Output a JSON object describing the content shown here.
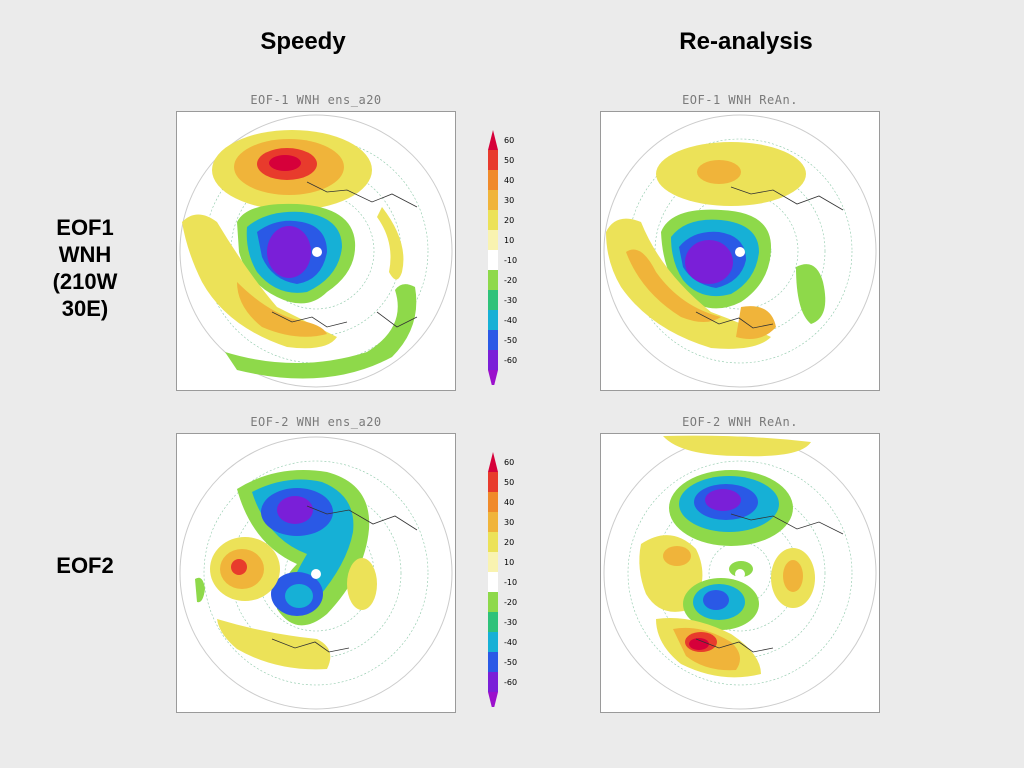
{
  "columns": {
    "left": "Speedy",
    "right": "Re-analysis"
  },
  "rows": {
    "eof1": [
      "EOF1",
      "WNH",
      "(210W",
      "30E)"
    ],
    "eof2": [
      "EOF2"
    ]
  },
  "panels": {
    "eof1_speedy": "EOF-1 WNH  ens_a20",
    "eof1_rean": "EOF-1 WNH  ReAn.",
    "eof2_speedy": "EOF-2 WNH  ens_a20",
    "eof2_rean": "EOF-2 WNH  ReAn."
  },
  "colorbar": {
    "levels": [
      "60",
      "50",
      "40",
      "30",
      "20",
      "10",
      "-10",
      "-20",
      "-30",
      "-40",
      "-50",
      "-60"
    ],
    "colors": [
      "#d6003a",
      "#e83b2c",
      "#f08a2a",
      "#f0b43a",
      "#ece258",
      "#f9f3b0",
      "#ffffff",
      "#8ed94a",
      "#2ec27a",
      "#16b0d6",
      "#2a59e6",
      "#7a1fd8",
      "#9b10cc"
    ]
  }
}
